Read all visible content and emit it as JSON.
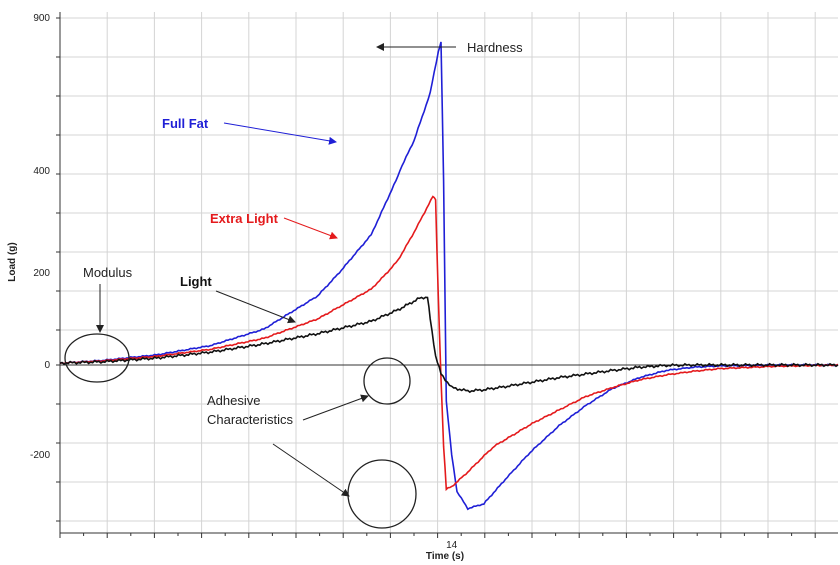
{
  "chart_data": {
    "type": "line",
    "xlabel": "Time (s)",
    "ylabel": "Load (g)",
    "x_tick_labels": [
      {
        "x": 14,
        "label": "14"
      }
    ],
    "y_tick_labels": [
      {
        "y": 900,
        "label": "900"
      },
      {
        "y": 400,
        "label": "400"
      },
      {
        "y": 200,
        "label": "200"
      },
      {
        "y": 0,
        "label": "0"
      },
      {
        "y": -200,
        "label": "-200"
      }
    ],
    "xlim": [
      6.7,
      21.2
    ],
    "ylim": [
      -360,
      925
    ],
    "y_break": {
      "at": 600,
      "note": "y axis compresses above 400 (400 shown near 200/0 spacing)"
    },
    "grid": true,
    "series": [
      {
        "name": "Full Fat",
        "color": "#1f1fd6",
        "points": [
          [
            6.7,
            4
          ],
          [
            7.5,
            10
          ],
          [
            8.5,
            22
          ],
          [
            9.5,
            42
          ],
          [
            10.5,
            78
          ],
          [
            11.5,
            150
          ],
          [
            12.5,
            275
          ],
          [
            13.0,
            390
          ],
          [
            13.3,
            500
          ],
          [
            13.6,
            655
          ],
          [
            13.75,
            790
          ],
          [
            13.8,
            820
          ],
          [
            13.85,
            380
          ],
          [
            13.9,
            -80
          ],
          [
            14.0,
            -200
          ],
          [
            14.1,
            -275
          ],
          [
            14.3,
            -310
          ],
          [
            14.6,
            -300
          ],
          [
            15.0,
            -250
          ],
          [
            15.5,
            -190
          ],
          [
            16.0,
            -135
          ],
          [
            16.5,
            -90
          ],
          [
            17.0,
            -52
          ],
          [
            17.5,
            -28
          ],
          [
            18.0,
            -12
          ],
          [
            18.5,
            -5
          ],
          [
            19.0,
            -2
          ],
          [
            20.0,
            0
          ],
          [
            21.2,
            0
          ]
        ]
      },
      {
        "name": "Extra Light",
        "color": "#e41a1c",
        "points": [
          [
            6.7,
            4
          ],
          [
            7.5,
            9
          ],
          [
            8.5,
            19
          ],
          [
            9.5,
            34
          ],
          [
            10.5,
            58
          ],
          [
            11.5,
            100
          ],
          [
            12.5,
            165
          ],
          [
            13.0,
            225
          ],
          [
            13.3,
            280
          ],
          [
            13.65,
            350
          ],
          [
            13.7,
            345
          ],
          [
            13.75,
            150
          ],
          [
            13.8,
            -30
          ],
          [
            13.85,
            -180
          ],
          [
            13.9,
            -270
          ],
          [
            14.0,
            -265
          ],
          [
            14.3,
            -235
          ],
          [
            14.8,
            -180
          ],
          [
            15.5,
            -130
          ],
          [
            16.0,
            -100
          ],
          [
            16.5,
            -70
          ],
          [
            17.0,
            -50
          ],
          [
            17.5,
            -33
          ],
          [
            18.0,
            -22
          ],
          [
            18.5,
            -14
          ],
          [
            19.0,
            -8
          ],
          [
            20.0,
            -3
          ],
          [
            21.2,
            0
          ]
        ]
      },
      {
        "name": "Light",
        "color": "#111111",
        "points": [
          [
            6.7,
            4
          ],
          [
            7.5,
            7
          ],
          [
            8.5,
            15
          ],
          [
            9.5,
            28
          ],
          [
            10.5,
            46
          ],
          [
            11.5,
            68
          ],
          [
            12.5,
            95
          ],
          [
            13.0,
            120
          ],
          [
            13.4,
            145
          ],
          [
            13.55,
            148
          ],
          [
            13.6,
            100
          ],
          [
            13.7,
            20
          ],
          [
            13.8,
            -20
          ],
          [
            14.0,
            -50
          ],
          [
            14.3,
            -58
          ],
          [
            14.6,
            -55
          ],
          [
            15.0,
            -48
          ],
          [
            15.5,
            -38
          ],
          [
            16.0,
            -28
          ],
          [
            16.5,
            -20
          ],
          [
            17.0,
            -12
          ],
          [
            17.5,
            -5
          ],
          [
            18.0,
            -1
          ],
          [
            18.5,
            0
          ],
          [
            21.2,
            0
          ]
        ]
      }
    ],
    "annotations": [
      {
        "text": "Hardness",
        "color": "#222222"
      },
      {
        "text": "Full Fat",
        "color": "#1f1fd6",
        "bold": true
      },
      {
        "text": "Extra Light",
        "color": "#e41a1c",
        "bold": true
      },
      {
        "text": "Light",
        "color": "#111111",
        "bold": true
      },
      {
        "text": "Modulus",
        "color": "#222222"
      },
      {
        "text": "Adhesive",
        "color": "#222222"
      },
      {
        "text": "Characteristics",
        "color": "#222222"
      }
    ]
  }
}
